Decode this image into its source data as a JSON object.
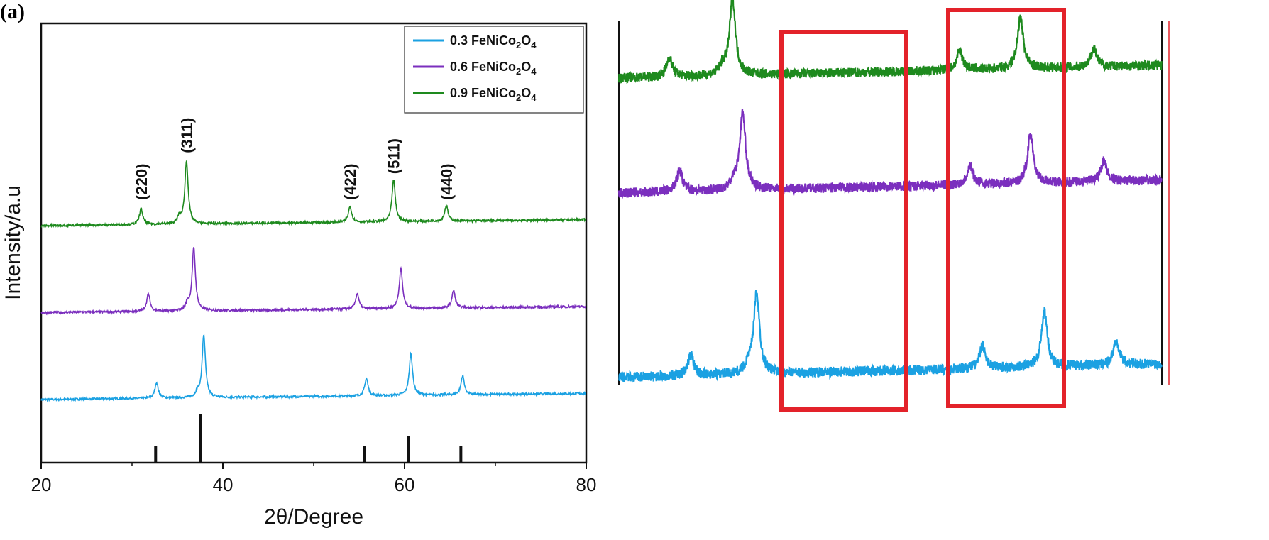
{
  "panel_label": "(a)",
  "chart_data": [
    {
      "type": "line",
      "title": "",
      "xlabel": "2θ/Degree",
      "ylabel": "Intensity/a.u",
      "xlim": [
        20,
        80
      ],
      "x_ticks": [
        20,
        40,
        60,
        80
      ],
      "y_ticks_shown": false,
      "legend_position": "top-right",
      "grid": false,
      "series": [
        {
          "name": "0.3 FeNiCo2O4",
          "legend_parts": [
            "0.3 FeNiCo",
            "2",
            "O",
            "4"
          ],
          "color": "#1ba1e2",
          "baseline": 0.0,
          "peaks": [
            [
              32.7,
              0.9
            ],
            [
              37.2,
              0.3
            ],
            [
              37.9,
              3.6
            ],
            [
              55.8,
              1.0
            ],
            [
              60.7,
              2.4
            ],
            [
              66.4,
              1.1
            ]
          ]
        },
        {
          "name": "0.6 FeNiCo2O4",
          "legend_parts": [
            "0.6 FeNiCo",
            "2",
            "O",
            "4"
          ],
          "color": "#7b2fbe",
          "baseline": 5.0,
          "peaks": [
            [
              31.8,
              1.0
            ],
            [
              36.1,
              0.4
            ],
            [
              36.8,
              3.6
            ],
            [
              54.8,
              0.9
            ],
            [
              59.6,
              2.3
            ],
            [
              65.4,
              1.0
            ]
          ]
        },
        {
          "name": "0.9 FeNiCo2O4",
          "legend_parts": [
            "0.9 FeNiCo",
            "2",
            "O",
            "4"
          ],
          "color": "#1e8a1e",
          "baseline": 10.0,
          "peaks": [
            [
              31.0,
              0.9
            ],
            [
              35.2,
              0.4
            ],
            [
              36.0,
              3.6
            ],
            [
              54.0,
              0.9
            ],
            [
              58.8,
              2.4
            ],
            [
              64.6,
              0.9
            ]
          ]
        }
      ],
      "annotations": [
        {
          "text": "(220)",
          "x": 31.0
        },
        {
          "text": "(311)",
          "x": 36.0
        },
        {
          "text": "(422)",
          "x": 54.0
        },
        {
          "text": "(511)",
          "x": 58.8
        },
        {
          "text": "(440)",
          "x": 64.6
        }
      ],
      "reference_pattern": [
        {
          "x": 32.6,
          "rel": 0.35
        },
        {
          "x": 37.5,
          "rel": 1.0
        },
        {
          "x": 55.6,
          "rel": 0.35
        },
        {
          "x": 60.4,
          "rel": 0.55
        },
        {
          "x": 66.2,
          "rel": 0.35
        }
      ]
    },
    {
      "type": "line",
      "title": "",
      "description": "Zoomed view of the three XRD patterns with two highlighted regions",
      "series_colors": [
        "#1e8a1e",
        "#7b2fbe",
        "#1ba1e2"
      ],
      "highlight_color": "#e3222a",
      "highlight_boxes": 2
    }
  ]
}
